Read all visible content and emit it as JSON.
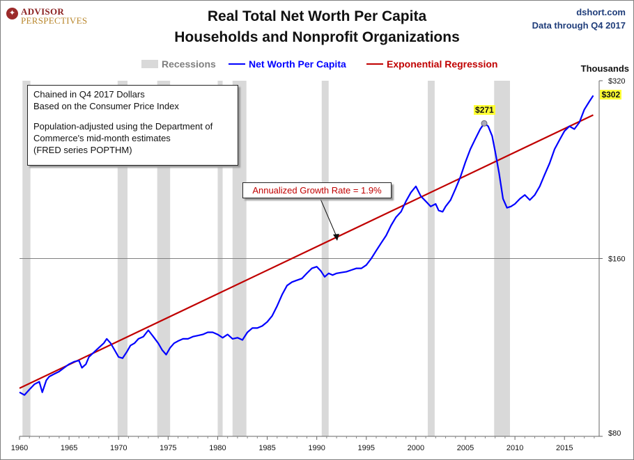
{
  "header": {
    "logo_line1": "ADVISOR",
    "logo_line2": "PERSPECTIVES",
    "title_line1": "Real Total Net Worth Per Capita",
    "title_line2": "Households and Nonprofit Organizations",
    "source_site": "dshort.com",
    "source_note": "Data through Q4 2017"
  },
  "legend": {
    "recessions": "Recessions",
    "net_worth": "Net Worth Per Capita",
    "regression": "Exponential Regression"
  },
  "notes": {
    "line1": "Chained in Q4 2017  Dollars",
    "line2": "Based on the Consumer Price Index",
    "line3": "Population-adjusted using the Department of",
    "line4": "Commerce's mid-month estimates",
    "line5": "(FRED series POPTHM)",
    "growth": "Annualized Growth Rate = 1.9%"
  },
  "colors": {
    "net_worth": "#0000ff",
    "regression": "#c00000",
    "recession": "#d9d9d9",
    "callout": "#ffff33",
    "recession_label": "#7f7f7f"
  },
  "chart_data": {
    "type": "line",
    "title": "Real Total Net Worth Per Capita",
    "subtitle": "Households and Nonprofit Organizations",
    "ylabel": "Thousands",
    "y_scale": "log",
    "ylim": [
      80,
      320
    ],
    "xlim": [
      1960,
      2018.5
    ],
    "y_ticks": [
      {
        "value": 80,
        "label": "$80"
      },
      {
        "value": 160,
        "label": "$160"
      },
      {
        "value": 320,
        "label": "$320"
      }
    ],
    "x_ticks": [
      1960,
      1965,
      1970,
      1975,
      1980,
      1985,
      1990,
      1995,
      2000,
      2005,
      2010,
      2015
    ],
    "recessions": [
      [
        1960.3,
        1961.1
      ],
      [
        1969.9,
        1970.9
      ],
      [
        1973.9,
        1975.2
      ],
      [
        1980.0,
        1980.5
      ],
      [
        1981.5,
        1982.9
      ],
      [
        1990.5,
        1991.2
      ],
      [
        2001.2,
        2001.9
      ],
      [
        2007.9,
        2009.5
      ]
    ],
    "series": [
      {
        "name": "Net Worth Per Capita",
        "points": [
          [
            1960.0,
            95.0
          ],
          [
            1960.5,
            94.0
          ],
          [
            1961.0,
            96.0
          ],
          [
            1961.5,
            98.0
          ],
          [
            1962.0,
            99.0
          ],
          [
            1962.3,
            95.0
          ],
          [
            1962.7,
            99.5
          ],
          [
            1963.0,
            101.0
          ],
          [
            1963.5,
            102.0
          ],
          [
            1964.0,
            103.0
          ],
          [
            1964.5,
            104.5
          ],
          [
            1965.0,
            106.0
          ],
          [
            1965.5,
            107.0
          ],
          [
            1966.0,
            107.5
          ],
          [
            1966.3,
            104.5
          ],
          [
            1966.7,
            106.0
          ],
          [
            1967.0,
            109.0
          ],
          [
            1967.5,
            111.0
          ],
          [
            1968.0,
            113.0
          ],
          [
            1968.5,
            115.0
          ],
          [
            1968.8,
            117.0
          ],
          [
            1969.2,
            115.0
          ],
          [
            1969.6,
            112.0
          ],
          [
            1970.0,
            109.0
          ],
          [
            1970.4,
            108.5
          ],
          [
            1970.8,
            111.0
          ],
          [
            1971.2,
            114.0
          ],
          [
            1971.6,
            115.0
          ],
          [
            1972.0,
            117.0
          ],
          [
            1972.5,
            118.0
          ],
          [
            1973.0,
            121.0
          ],
          [
            1973.5,
            118.0
          ],
          [
            1974.0,
            115.0
          ],
          [
            1974.4,
            112.0
          ],
          [
            1974.8,
            110.0
          ],
          [
            1975.2,
            113.0
          ],
          [
            1975.6,
            115.0
          ],
          [
            1976.0,
            116.0
          ],
          [
            1976.5,
            117.0
          ],
          [
            1977.0,
            117.0
          ],
          [
            1977.5,
            118.0
          ],
          [
            1978.0,
            118.5
          ],
          [
            1978.5,
            119.0
          ],
          [
            1979.0,
            120.0
          ],
          [
            1979.5,
            120.0
          ],
          [
            1980.0,
            119.0
          ],
          [
            1980.5,
            117.5
          ],
          [
            1981.0,
            119.0
          ],
          [
            1981.5,
            117.0
          ],
          [
            1982.0,
            117.5
          ],
          [
            1982.5,
            116.5
          ],
          [
            1983.0,
            120.0
          ],
          [
            1983.5,
            122.0
          ],
          [
            1984.0,
            122.0
          ],
          [
            1984.5,
            123.0
          ],
          [
            1985.0,
            125.0
          ],
          [
            1985.5,
            128.0
          ],
          [
            1986.0,
            133.0
          ],
          [
            1986.5,
            139.0
          ],
          [
            1987.0,
            144.0
          ],
          [
            1987.5,
            146.0
          ],
          [
            1988.0,
            147.0
          ],
          [
            1988.5,
            148.0
          ],
          [
            1989.0,
            151.0
          ],
          [
            1989.5,
            154.0
          ],
          [
            1990.0,
            155.0
          ],
          [
            1990.4,
            152.5
          ],
          [
            1990.8,
            149.0
          ],
          [
            1991.2,
            151.0
          ],
          [
            1991.6,
            150.0
          ],
          [
            1992.0,
            151.0
          ],
          [
            1992.5,
            151.5
          ],
          [
            1993.0,
            152.0
          ],
          [
            1993.5,
            153.0
          ],
          [
            1994.0,
            154.0
          ],
          [
            1994.5,
            154.0
          ],
          [
            1995.0,
            156.0
          ],
          [
            1995.5,
            160.0
          ],
          [
            1996.0,
            165.0
          ],
          [
            1996.5,
            170.0
          ],
          [
            1997.0,
            175.0
          ],
          [
            1997.5,
            182.0
          ],
          [
            1998.0,
            188.0
          ],
          [
            1998.5,
            192.0
          ],
          [
            1999.0,
            200.0
          ],
          [
            1999.5,
            207.0
          ],
          [
            2000.0,
            212.0
          ],
          [
            2000.5,
            204.0
          ],
          [
            2001.0,
            200.0
          ],
          [
            2001.5,
            196.0
          ],
          [
            2002.0,
            198.0
          ],
          [
            2002.3,
            193.0
          ],
          [
            2002.7,
            192.0
          ],
          [
            2003.0,
            196.0
          ],
          [
            2003.5,
            201.0
          ],
          [
            2004.0,
            210.0
          ],
          [
            2004.5,
            220.0
          ],
          [
            2005.0,
            233.0
          ],
          [
            2005.5,
            245.0
          ],
          [
            2006.0,
            255.0
          ],
          [
            2006.5,
            265.0
          ],
          [
            2006.9,
            271.0
          ],
          [
            2007.3,
            268.0
          ],
          [
            2007.7,
            258.0
          ],
          [
            2008.0,
            243.0
          ],
          [
            2008.4,
            223.0
          ],
          [
            2008.8,
            202.0
          ],
          [
            2009.2,
            195.0
          ],
          [
            2009.6,
            196.0
          ],
          [
            2010.0,
            198.0
          ],
          [
            2010.5,
            202.0
          ],
          [
            2011.0,
            205.0
          ],
          [
            2011.5,
            201.0
          ],
          [
            2012.0,
            205.0
          ],
          [
            2012.5,
            212.0
          ],
          [
            2013.0,
            222.0
          ],
          [
            2013.5,
            232.0
          ],
          [
            2014.0,
            245.0
          ],
          [
            2014.5,
            254.0
          ],
          [
            2015.0,
            263.0
          ],
          [
            2015.5,
            268.0
          ],
          [
            2016.0,
            265.0
          ],
          [
            2016.5,
            272.0
          ],
          [
            2017.0,
            286.0
          ],
          [
            2017.5,
            295.0
          ],
          [
            2017.9,
            302.0
          ]
        ]
      },
      {
        "name": "Exponential Regression",
        "points": [
          [
            1960.0,
            96.5
          ],
          [
            2017.9,
            280.0
          ]
        ]
      }
    ],
    "annotations": [
      {
        "x": 2006.9,
        "y": 271,
        "label": "$271"
      },
      {
        "x": 2017.9,
        "y": 302,
        "label": "$302"
      }
    ]
  }
}
